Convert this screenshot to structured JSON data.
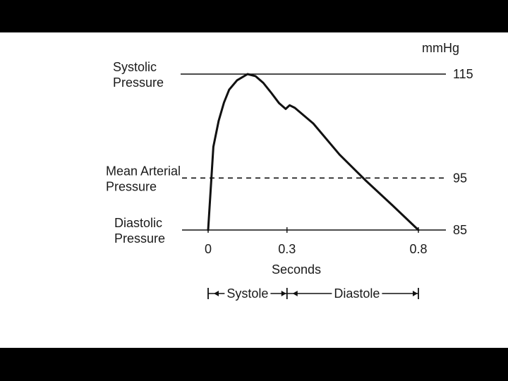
{
  "chart_data": {
    "type": "line",
    "units_label": "mmHg",
    "xlabel": "Seconds",
    "x_ticks": [
      "0",
      "0.3",
      "0.8"
    ],
    "reference_lines": [
      {
        "label": [
          "Systolic",
          "Pressure"
        ],
        "value": 115,
        "value_label": "115",
        "style": "solid"
      },
      {
        "label": [
          "Mean Arterial",
          "Pressure"
        ],
        "value": 95,
        "value_label": "95",
        "style": "dashed"
      },
      {
        "label": [
          "Diastolic",
          "Pressure"
        ],
        "value": 85,
        "value_label": "85",
        "style": "solid"
      }
    ],
    "series": [
      {
        "points": [
          [
            0.0,
            85
          ],
          [
            0.01,
            93
          ],
          [
            0.02,
            101
          ],
          [
            0.04,
            106
          ],
          [
            0.06,
            109.5
          ],
          [
            0.08,
            112
          ],
          [
            0.11,
            113.8
          ],
          [
            0.15,
            115
          ],
          [
            0.18,
            114.6
          ],
          [
            0.21,
            113.3
          ],
          [
            0.24,
            111.4
          ],
          [
            0.27,
            109.4
          ],
          [
            0.295,
            108.3
          ],
          [
            0.31,
            109.0
          ],
          [
            0.33,
            108.5
          ],
          [
            0.4,
            105.5
          ],
          [
            0.5,
            99.5
          ],
          [
            0.6,
            94.5
          ],
          [
            0.7,
            89.8
          ],
          [
            0.8,
            85
          ]
        ]
      }
    ],
    "phases": [
      {
        "label": "Systole",
        "from": 0.0,
        "to": 0.3
      },
      {
        "label": "Diastole",
        "from": 0.3,
        "to": 0.8
      }
    ]
  }
}
